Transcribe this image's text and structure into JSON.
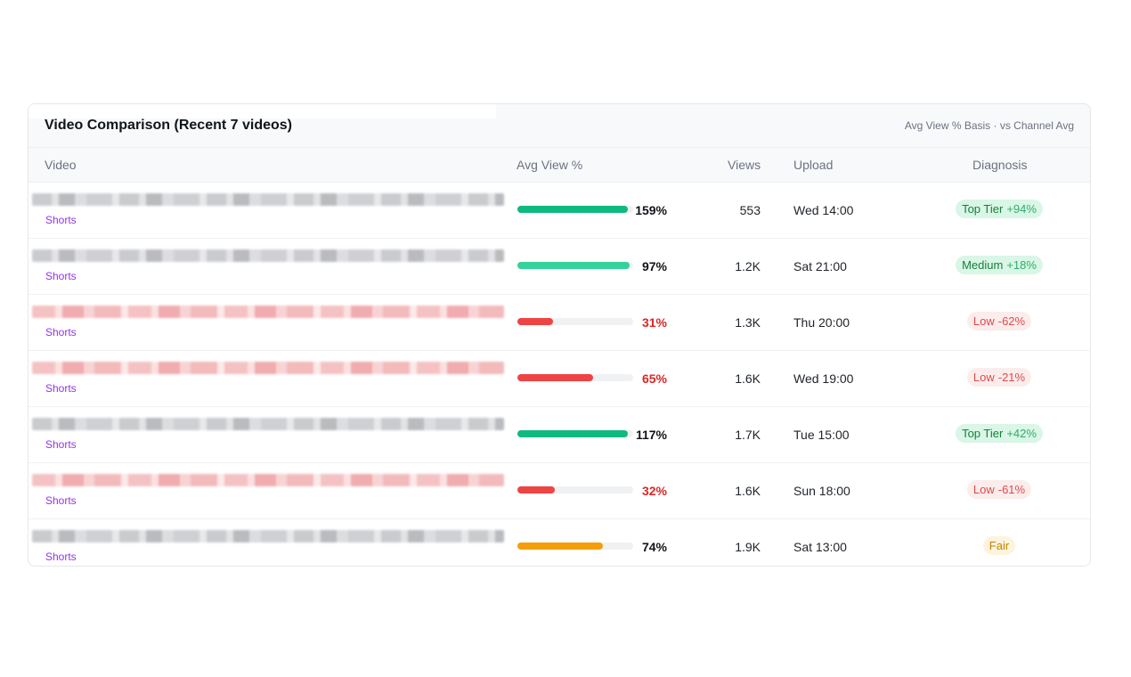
{
  "card": {
    "title": "Video Comparison (Recent 7 videos)",
    "subtitle": "Avg View % Basis · vs Channel Avg"
  },
  "columns": {
    "video": "Video",
    "avg_view": "Avg View %",
    "views": "Views",
    "upload": "Upload",
    "diagnosis": "Diagnosis"
  },
  "rows": [
    {
      "type": "Shorts",
      "title_blur": "gray",
      "avg_view_pct": 159,
      "avg_view_label": "159%",
      "bar_color": "#10b981",
      "pct_color": "#111418",
      "views": "553",
      "upload": "Wed 14:00",
      "diagnosis": "Top Tier",
      "delta": "+94%",
      "badge": "good"
    },
    {
      "type": "Shorts",
      "title_blur": "gray",
      "avg_view_pct": 97,
      "avg_view_label": "97%",
      "bar_color": "#34d399",
      "pct_color": "#111418",
      "views": "1.2K",
      "upload": "Sat 21:00",
      "diagnosis": "Medium",
      "delta": "+18%",
      "badge": "good"
    },
    {
      "type": "Shorts",
      "title_blur": "red",
      "avg_view_pct": 31,
      "avg_view_label": "31%",
      "bar_color": "#ef4444",
      "pct_color": "#dc2626",
      "views": "1.3K",
      "upload": "Thu 20:00",
      "diagnosis": "Low",
      "delta": "-62%",
      "badge": "bad"
    },
    {
      "type": "Shorts",
      "title_blur": "red",
      "avg_view_pct": 65,
      "avg_view_label": "65%",
      "bar_color": "#ef4444",
      "pct_color": "#dc2626",
      "views": "1.6K",
      "upload": "Wed 19:00",
      "diagnosis": "Low",
      "delta": "-21%",
      "badge": "bad"
    },
    {
      "type": "Shorts",
      "title_blur": "gray",
      "avg_view_pct": 117,
      "avg_view_label": "117%",
      "bar_color": "#10b981",
      "pct_color": "#111418",
      "views": "1.7K",
      "upload": "Tue 15:00",
      "diagnosis": "Top Tier",
      "delta": "+42%",
      "badge": "good"
    },
    {
      "type": "Shorts",
      "title_blur": "red",
      "avg_view_pct": 32,
      "avg_view_label": "32%",
      "bar_color": "#ef4444",
      "pct_color": "#dc2626",
      "views": "1.6K",
      "upload": "Sun 18:00",
      "diagnosis": "Low",
      "delta": "-61%",
      "badge": "bad"
    },
    {
      "type": "Shorts",
      "title_blur": "gray",
      "avg_view_pct": 74,
      "avg_view_label": "74%",
      "bar_color": "#f59e0b",
      "pct_color": "#111418",
      "views": "1.9K",
      "upload": "Sat 13:00",
      "diagnosis": "Fair",
      "delta": "",
      "badge": "fair"
    }
  ]
}
